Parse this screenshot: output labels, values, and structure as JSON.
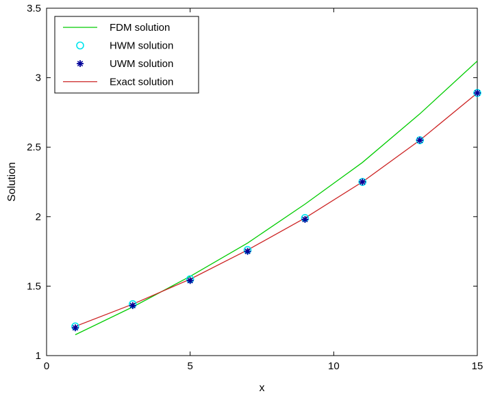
{
  "chart_data": {
    "type": "line",
    "title": "",
    "xlabel": "x",
    "ylabel": "Solution",
    "xlim": [
      0,
      15
    ],
    "ylim": [
      1,
      3.5
    ],
    "xticks": [
      0,
      5,
      10,
      15
    ],
    "yticks": [
      1,
      1.5,
      2,
      2.5,
      3,
      3.5
    ],
    "xtick_labels": [
      "0",
      "5",
      "10",
      "15"
    ],
    "ytick_labels": [
      "1",
      "1.5",
      "2",
      "2.5",
      "3",
      "3.5"
    ],
    "grid": false,
    "legend_position": "top-left",
    "series": [
      {
        "name": "FDM solution",
        "style": "line",
        "color": "#00cc00",
        "x": [
          1,
          3,
          5,
          7,
          9,
          11,
          13,
          15
        ],
        "y": [
          1.15,
          1.35,
          1.57,
          1.81,
          2.09,
          2.39,
          2.74,
          3.12
        ]
      },
      {
        "name": "HWM solution",
        "style": "marker-circle",
        "color": "#00e5ee",
        "x": [
          1,
          3,
          5,
          7,
          9,
          11,
          13,
          15
        ],
        "y": [
          1.21,
          1.37,
          1.55,
          1.76,
          1.99,
          2.25,
          2.55,
          2.89
        ]
      },
      {
        "name": "UWM solution",
        "style": "marker-star",
        "color": "#000099",
        "x": [
          1,
          3,
          5,
          7,
          9,
          11,
          13,
          15
        ],
        "y": [
          1.2,
          1.36,
          1.54,
          1.75,
          1.98,
          2.25,
          2.55,
          2.89
        ]
      },
      {
        "name": "Exact solution",
        "style": "line",
        "color": "#cc2222",
        "x": [
          1,
          3,
          5,
          7,
          9,
          11,
          13,
          15
        ],
        "y": [
          1.21,
          1.37,
          1.55,
          1.76,
          1.99,
          2.25,
          2.55,
          2.89
        ]
      }
    ]
  }
}
